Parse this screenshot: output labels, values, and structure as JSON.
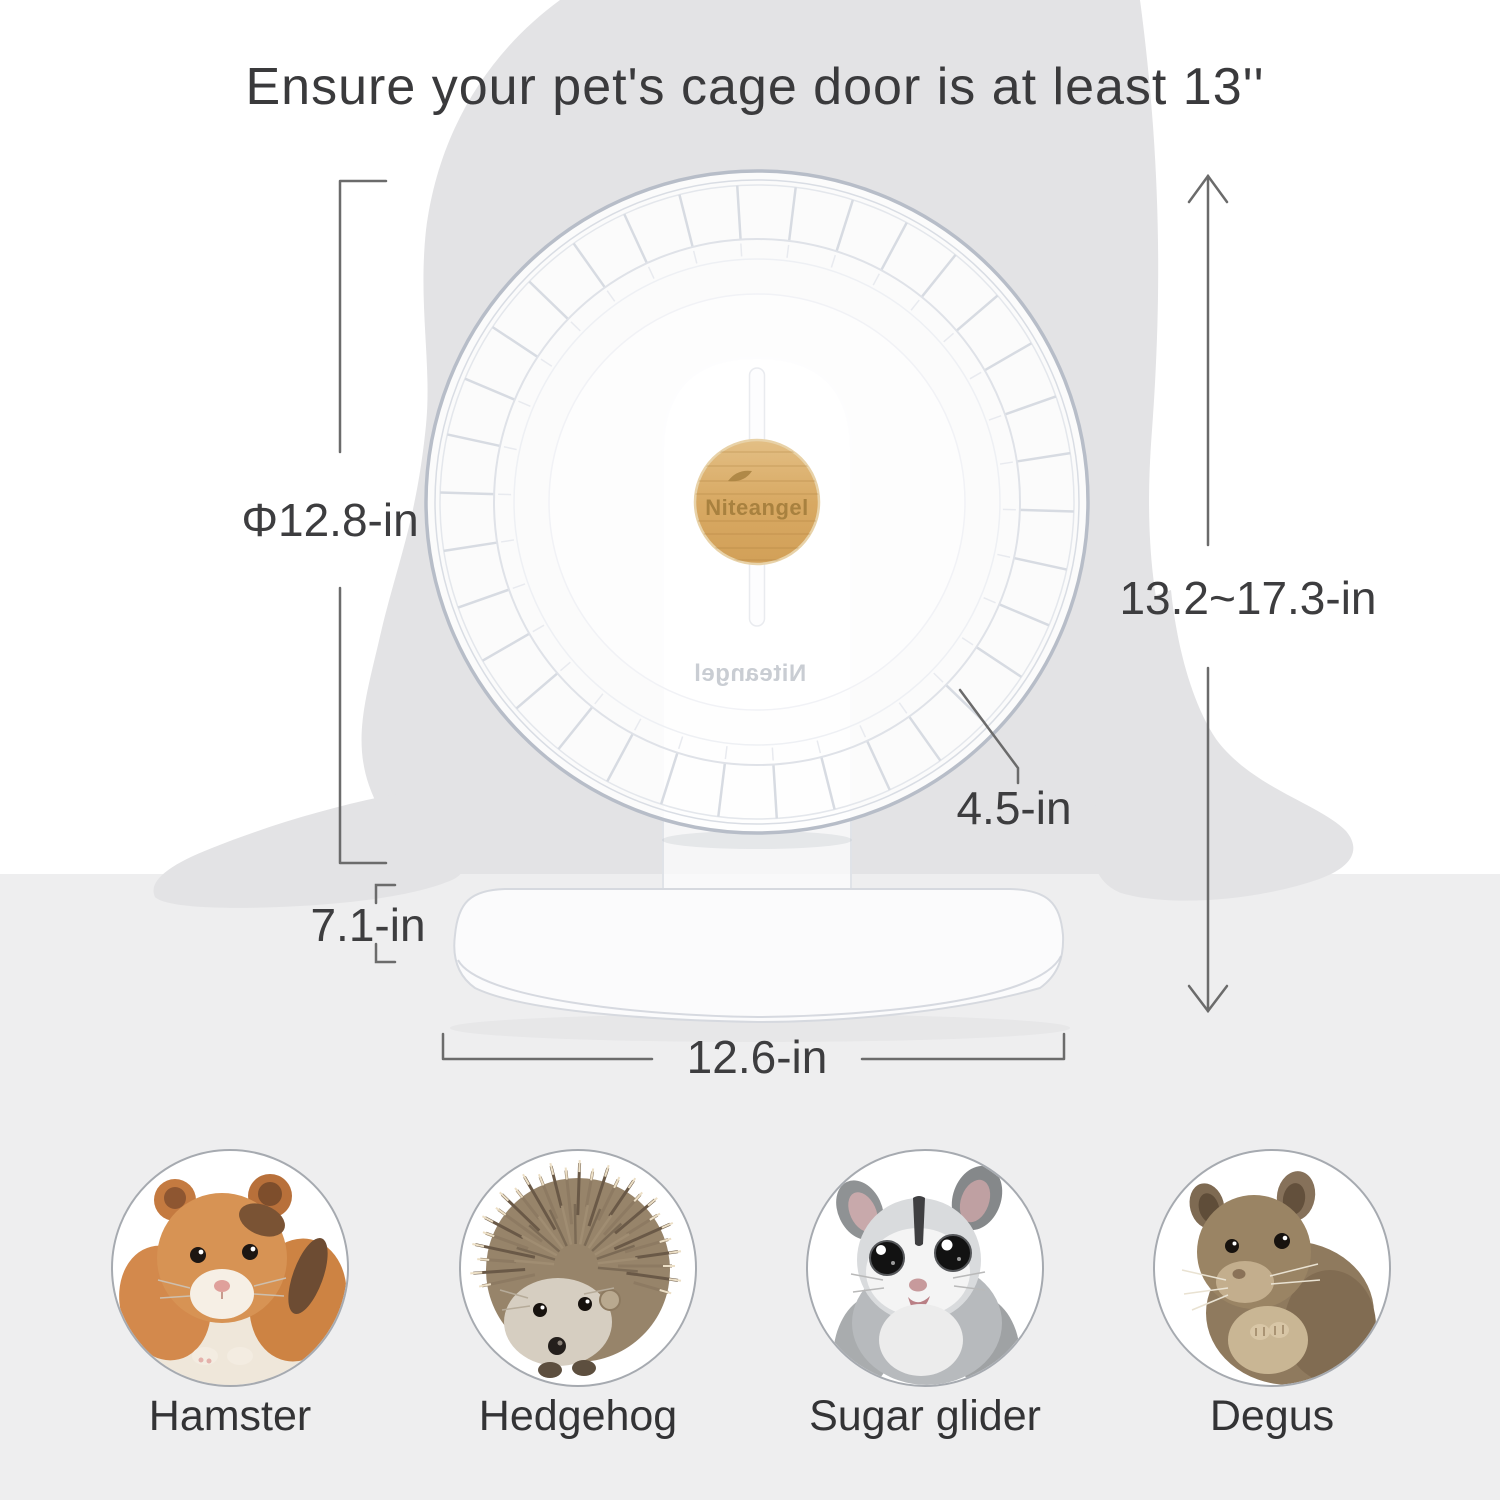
{
  "title": "Ensure your pet's cage door is at least 13''",
  "brand": {
    "hub_label": "Niteangel",
    "stand_label": "Niteangel"
  },
  "dimensions": {
    "diameter": "Φ12.8-in",
    "height_range": "13.2~17.3-in",
    "wheel_depth": "4.5-in",
    "base_depth": "7.1-in",
    "base_width": "12.6-in"
  },
  "animals": [
    {
      "label": "Hamster"
    },
    {
      "label": "Hedgehog"
    },
    {
      "label": "Sugar glider"
    },
    {
      "label": "Degus"
    }
  ],
  "colors": {
    "bamboo_hub": "#d8a963",
    "floor": "#eeeeef",
    "silhouette": "#e3e3e5",
    "dimension_lines": "#6b6b6b",
    "text": "#3a3a3c",
    "wheel_rim": "#b7bdc8"
  }
}
